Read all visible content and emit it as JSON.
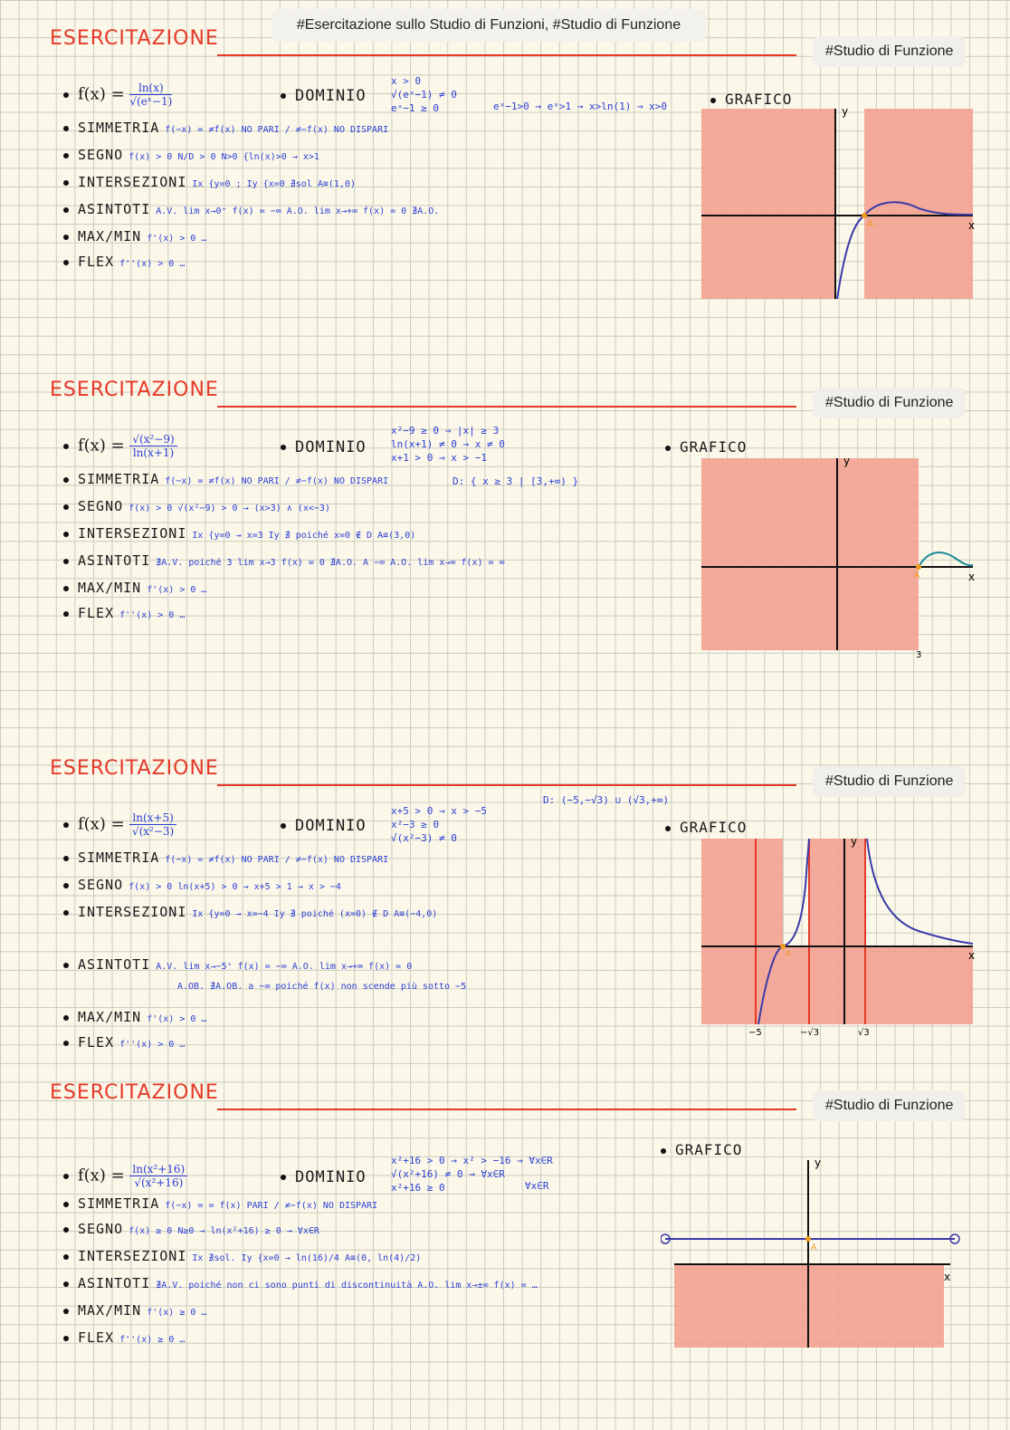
{
  "header_tags": "#Esercitazione sullo Studio di Funzioni, #Studio di Funzione",
  "tag": "#Studio di Funzione",
  "section_title": "ESERCITAZIONE",
  "labels": {
    "simmetria": "SIMMETRIA",
    "segno": "SEGNO",
    "intersezioni": "INTERSEZIONI",
    "asintoti": "ASINTOTI",
    "maxmin": "MAX/MIN",
    "flex": "FLEX",
    "dominio": "DOMINIO",
    "grafico": "GRAFICO"
  },
  "exercises": [
    {
      "f_num": "ln(x)",
      "f_den": "√(eˣ−1)",
      "simmetria": "f(−x) = ≠f(x) NO PARI / ≠−f(x) NO DISPARI",
      "segno": "f(x) > 0   N/D > 0  N>0 {ln(x)>0 → x>1",
      "intersezioni": "Ix {y=0 ; Iy {x=0 ∄sol   A≡(1,0)",
      "asintoti": "A.V. lim x→0⁺ f(x) = −∞   A.O. lim x→+∞ f(x) = 0  ∄A.O.",
      "maxmin": "f'(x) > 0 …",
      "flex": "f''(x) > 0 …",
      "dominio": [
        "x > 0",
        "√(eˣ−1) ≠ 0",
        "eˣ−1 ≥ 0"
      ],
      "dominio_result": "eˣ−1>0 → eˣ>1 → x>ln(1) → x>0",
      "graph": {
        "axis_labels": [
          "y",
          "x"
        ],
        "point_label": "A"
      }
    },
    {
      "f_num": "√(x²−9)",
      "f_den": "ln(x+1)",
      "simmetria": "f(−x) = ≠f(x) NO PARI / ≠−f(x) NO DISPARI",
      "segno": "f(x) > 0  √(x²−9) > 0 → (x>3) ∧ (x<−3)",
      "intersezioni": "Ix {y=0 → x=3   Iy ∄ poiché x=0 ∉ D   A≡(3,0)",
      "asintoti": "∄A.V. poiché 3 lim x→3 f(x) = 0   ∄A.O. A −∞   A.O. lim x→∞ f(x) = ∞",
      "maxmin": "f'(x) > 0 …",
      "flex": "f''(x) > 0 …",
      "dominio": [
        "x²−9 ≥ 0 → |x| ≥ 3",
        "ln(x+1) ≠ 0 → x ≠ 0",
        "x+1 > 0 → x > −1"
      ],
      "dominio_result": "D: { x ≥ 3 | [3,+∞) }",
      "graph": {
        "axis_labels": [
          "y",
          "x"
        ],
        "point_label": "A",
        "tick": "3"
      }
    },
    {
      "f_num": "ln(x+5)",
      "f_den": "√(x²−3)",
      "simmetria": "f(−x) = ≠f(x) NO PARI / ≠−f(x) NO DISPARI",
      "segno": "f(x) > 0  ln(x+5) > 0 → x+5 > 1 → x > −4",
      "intersezioni": "Ix {y=0 → x=−4   Iy ∄ poiché (x=0) ∉ D   A≡(−4,0)",
      "asintoti": "A.V. lim x→−5⁺ f(x) = −∞   A.O. lim x→+∞ f(x) = 0",
      "asintoti_ob": "A.OB. ∄A.OB. a −∞ poiché f(x) non scende più sotto −5",
      "maxmin": "f'(x) > 0 …",
      "flex": "f''(x) > 0 …",
      "dominio": [
        "x+5 > 0 → x > −5",
        "x²−3 ≥ 0",
        "√(x²−3) ≠ 0"
      ],
      "dominio_result": "D: (−5,−√3) ∪ (√3,+∞)",
      "graph": {
        "axis_labels": [
          "y",
          "x"
        ],
        "point_label": "A",
        "ticks": [
          "−5",
          "−√3",
          "√3"
        ]
      }
    },
    {
      "f_num": "ln(x²+16)",
      "f_den": "√(x²+16)",
      "simmetria": "f(−x) = = f(x) PARI / ≠−f(x) NO DISPARI",
      "segno": "f(x) ≥ 0  N≥0 → ln(x²+16) ≥ 0 → ∀x∈R",
      "intersezioni": "Ix ∄sol.   Iy {x=0 → ln(16)/4   A≡(0, ln(4)/2)",
      "asintoti": "∄A.V. poiché non ci sono punti di discontinuità   A.O. lim x→±∞ f(x) = …",
      "maxmin": "f'(x) ≥ 0 …",
      "flex": "f''(x) ≥ 0 …",
      "dominio": [
        "x²+16 > 0 → x² > −16 → ∀x∈R",
        "√(x²+16) ≠ 0 → ∀x∈R",
        "x²+16 ≥ 0"
      ],
      "dominio_result": "∀x∈R",
      "graph": {
        "axis_labels": [
          "y",
          "x"
        ],
        "point_label": "A"
      }
    }
  ],
  "colors": {
    "red": "#e53a2a",
    "blue": "#2b3fd6",
    "orange": "#f09a18",
    "shade": "#f2a191",
    "curve": "#3b3aa8",
    "teal": "#1e8a9a"
  }
}
